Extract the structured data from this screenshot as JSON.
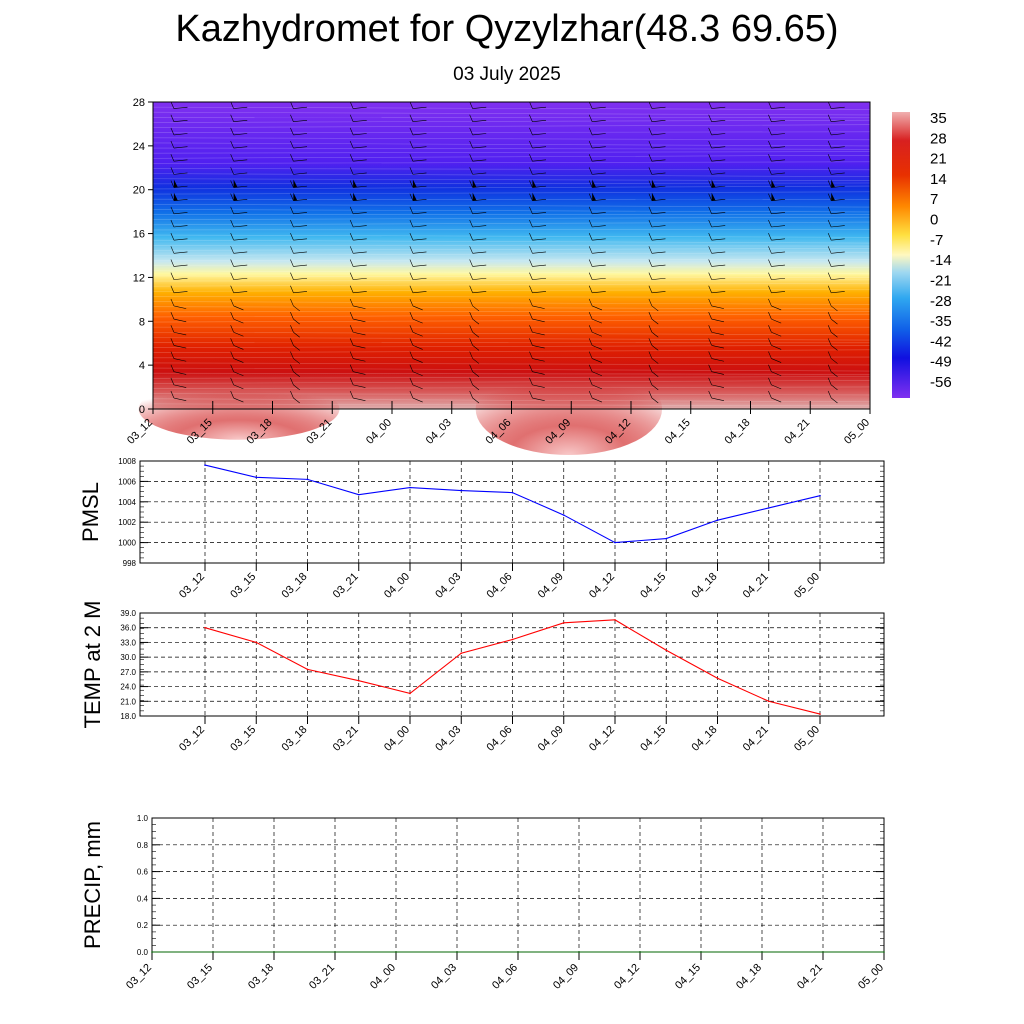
{
  "title": "Kazhydromet for Qyzylzhar(48.3 69.65)",
  "subtitle": "03 July 2025",
  "chart_data": [
    {
      "type": "heatmap",
      "x_categories": [
        "03_12",
        "03_15",
        "03_18",
        "03_21",
        "04_00",
        "04_03",
        "04_06",
        "04_09",
        "04_12",
        "04_15",
        "04_18",
        "04_21",
        "05_00"
      ],
      "y_ticks": [
        0,
        4,
        8,
        12,
        16,
        20,
        24,
        28
      ],
      "ylim": [
        0,
        28
      ],
      "colorbar": {
        "labels": [
          "35",
          "28",
          "21",
          "14",
          "7",
          "0",
          "-7",
          "-14",
          "-21",
          "-28",
          "-35",
          "-42",
          "-49",
          "-56"
        ],
        "range": [
          -60,
          38
        ]
      },
      "surface_values": [
        34,
        31,
        30,
        28,
        27,
        33,
        36,
        38,
        38,
        33,
        28,
        26,
        25
      ]
    },
    {
      "type": "line",
      "ylabel": "PMSL",
      "categories": [
        "03_12",
        "03_15",
        "03_18",
        "03_21",
        "04_00",
        "04_03",
        "04_06",
        "04_09",
        "04_12",
        "04_15",
        "04_18",
        "04_21",
        "05_00"
      ],
      "values": [
        1007.6,
        1006.4,
        1006.2,
        1004.7,
        1005.4,
        1005.1,
        1004.9,
        1002.7,
        1000.0,
        1000.4,
        1002.2,
        1003.4,
        1004.6
      ],
      "y_ticks": [
        "998",
        "1000",
        "1002",
        "1004",
        "1006",
        "1008"
      ],
      "ylim": [
        998,
        1008
      ],
      "color": "#0000ff"
    },
    {
      "type": "line",
      "ylabel": "TEMP at 2 M",
      "categories": [
        "03_12",
        "03_15",
        "03_18",
        "03_21",
        "04_00",
        "04_03",
        "04_06",
        "04_09",
        "04_12",
        "04_15",
        "04_18",
        "04_21",
        "05_00"
      ],
      "values": [
        36.0,
        33.0,
        27.5,
        25.2,
        22.6,
        30.8,
        33.6,
        37.0,
        37.6,
        31.4,
        25.7,
        21.0,
        18.4
      ],
      "y_ticks": [
        "18.0",
        "21.0",
        "24.0",
        "27.0",
        "30.0",
        "33.0",
        "36.0",
        "39.0"
      ],
      "ylim": [
        18,
        39
      ],
      "color": "#ff0000"
    },
    {
      "type": "line",
      "ylabel": "PRECIP, mm",
      "categories": [
        "03_12",
        "03_15",
        "03_18",
        "03_21",
        "04_00",
        "04_03",
        "04_06",
        "04_09",
        "04_12",
        "04_15",
        "04_18",
        "04_21",
        "05_00"
      ],
      "values": [
        0,
        0,
        0,
        0,
        0,
        0,
        0,
        0,
        0,
        0,
        0,
        0,
        0
      ],
      "y_ticks": [
        "0.0",
        "0.2",
        "0.4",
        "0.6",
        "0.8",
        "1.0"
      ],
      "ylim": [
        0,
        1
      ],
      "color": "#006400"
    }
  ]
}
